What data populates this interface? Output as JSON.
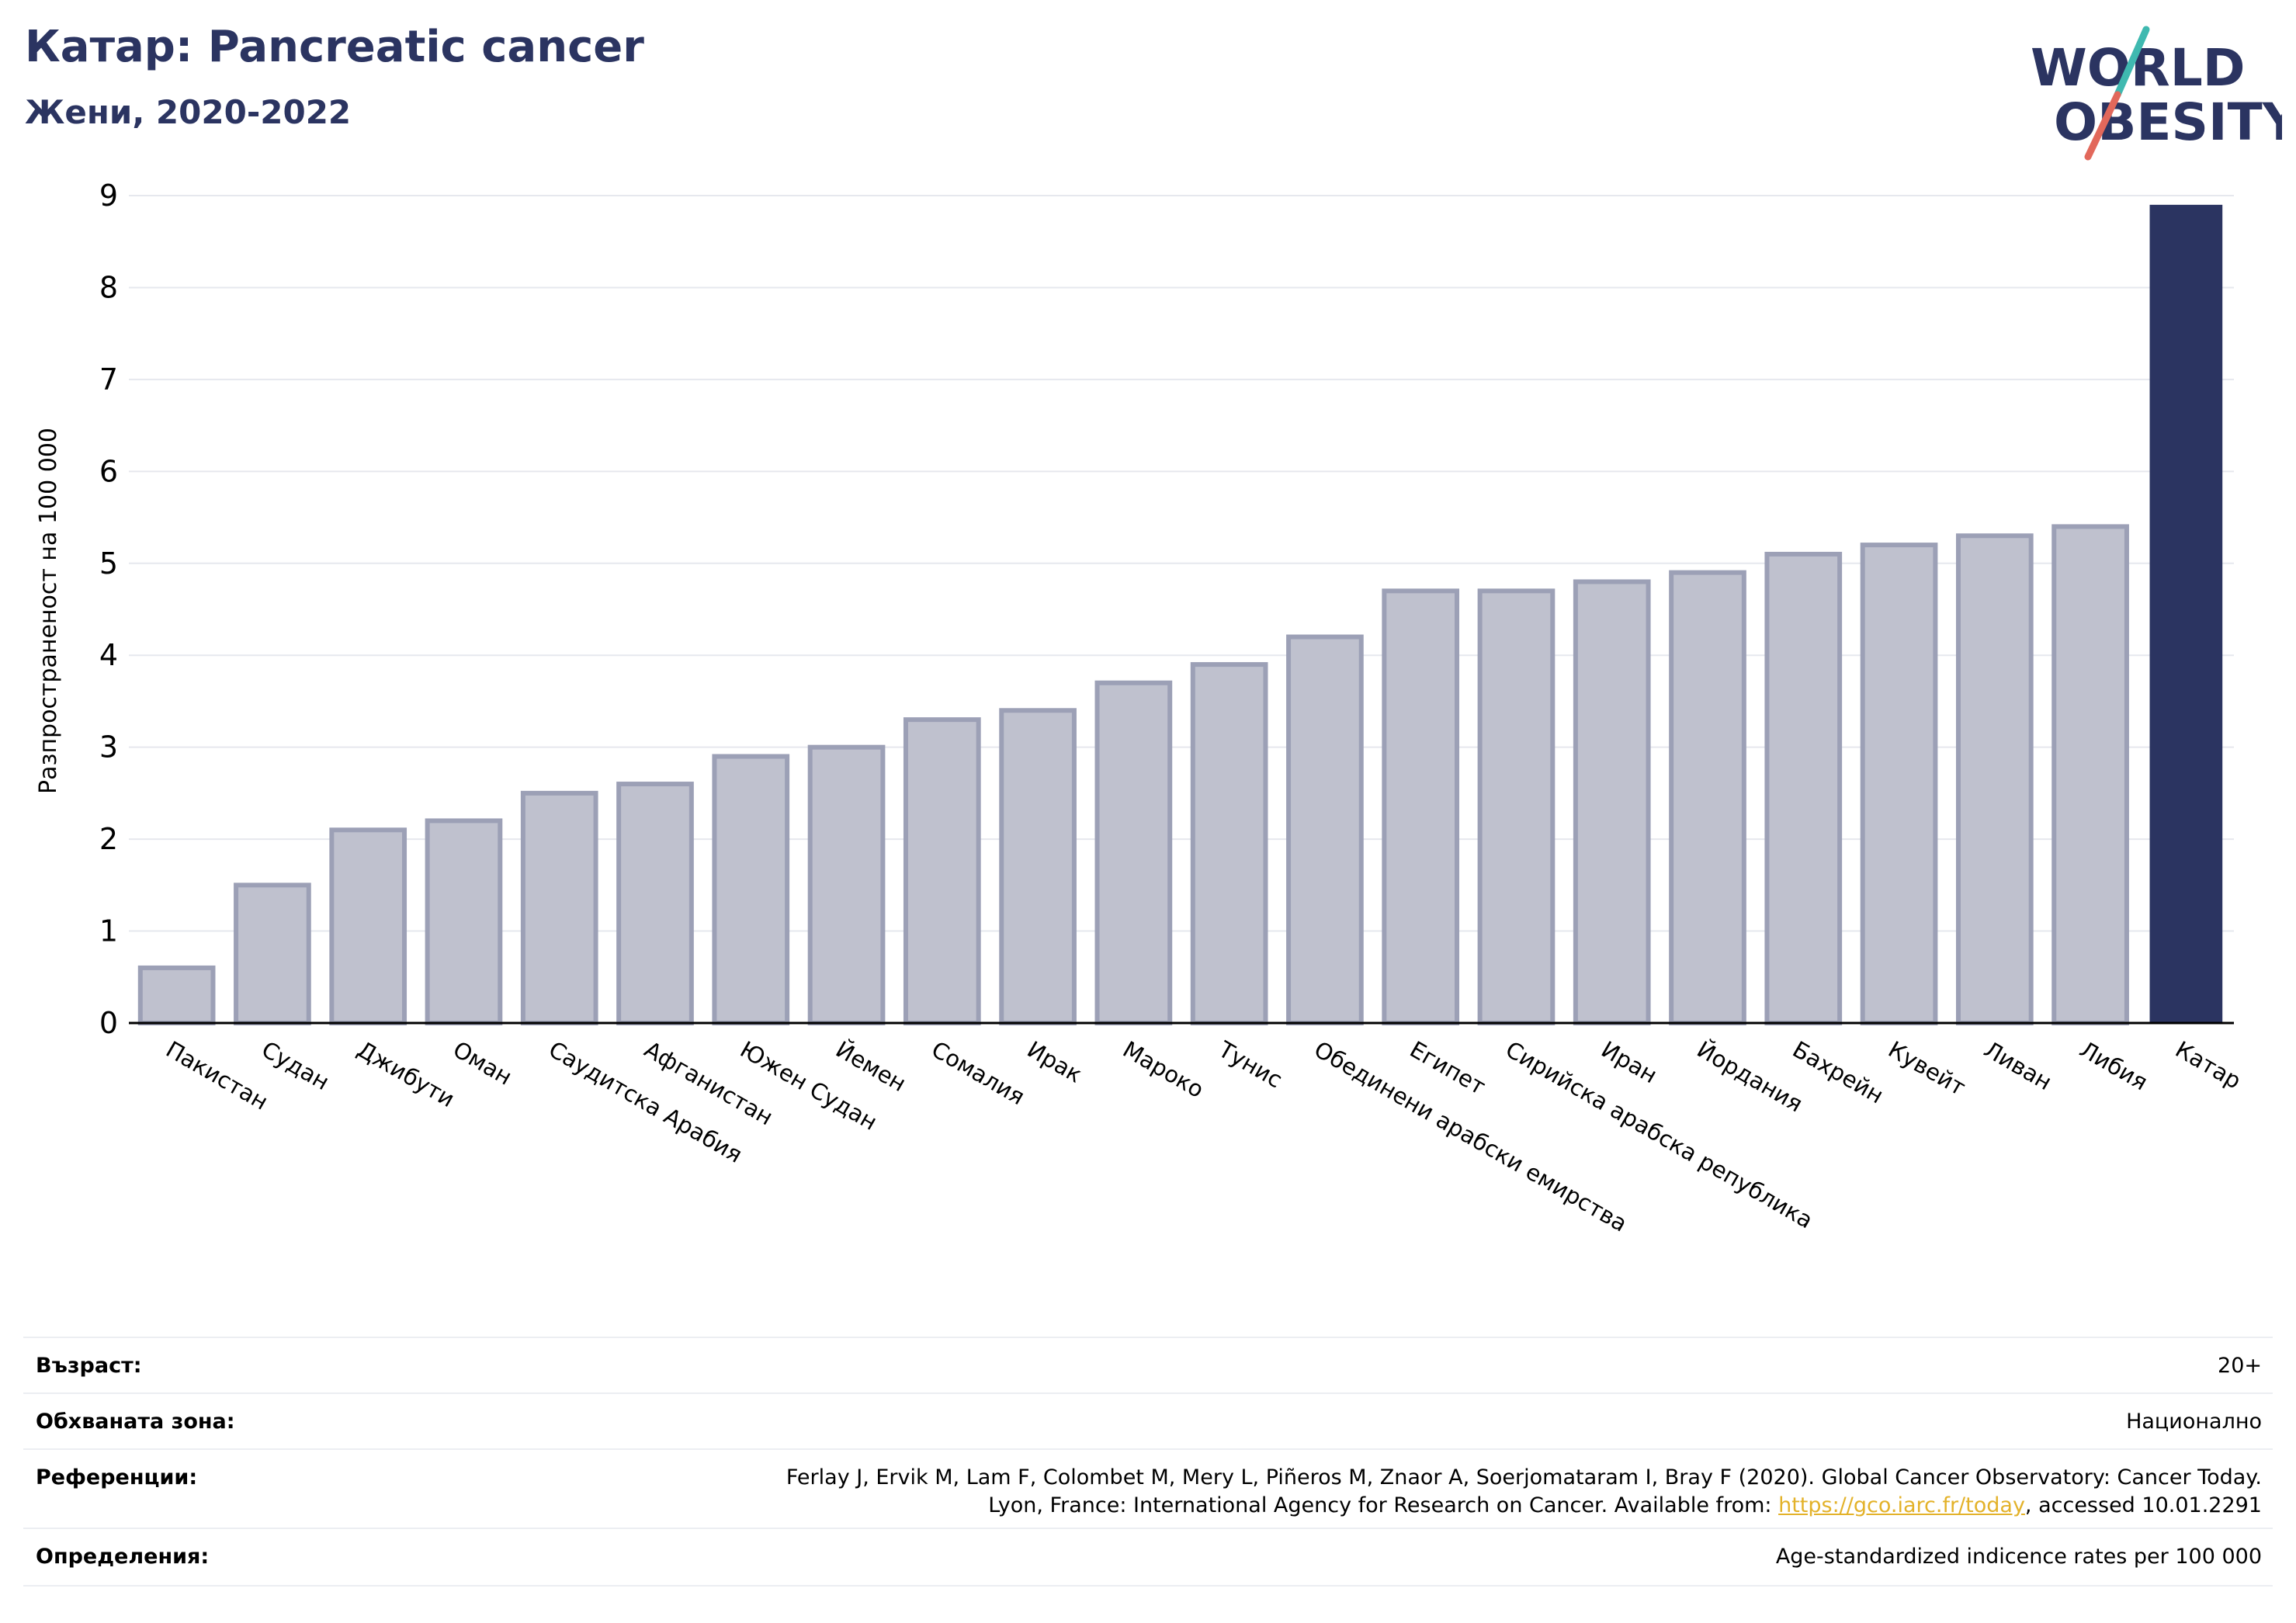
{
  "header": {
    "title": "Катар: Pancreatic cancer",
    "subtitle": "Жени, 2020-2022"
  },
  "logo": {
    "line1": "WORLD",
    "line2": "OBESITY",
    "colors": {
      "text": "#2b3461",
      "slash_top": "#3fb9b0",
      "slash_bottom": "#e2685b"
    }
  },
  "chart_data": {
    "type": "bar",
    "ylabel": "Разпространеност  на 100 000",
    "ylim": [
      0,
      9
    ],
    "yticks": [
      0,
      1,
      2,
      3,
      4,
      5,
      6,
      7,
      8,
      9
    ],
    "grid": true,
    "categories": [
      "Пакистан",
      "Судан",
      "Джибути",
      "Оман",
      "Саудитска Арабия",
      "Афганистан",
      "Южен Судан",
      "Йемен",
      "Сомалия",
      "Ирак",
      "Мароко",
      "Тунис",
      "Обединени арабски емирства",
      "Египет",
      "Сирийска арабска република",
      "Иран",
      "Йордания",
      "Бахрейн",
      "Кувейт",
      "Ливан",
      "Либия",
      "Катар"
    ],
    "values": [
      0.6,
      1.5,
      2.1,
      2.2,
      2.5,
      2.6,
      2.9,
      3.0,
      3.3,
      3.4,
      3.7,
      3.9,
      4.2,
      4.7,
      4.7,
      4.8,
      4.9,
      5.1,
      5.2,
      5.3,
      5.4,
      8.9
    ],
    "highlight": "Катар",
    "colors": {
      "bar": "#bfc1ce",
      "bar_edge": "#9ca0b6",
      "highlight": "#2b3461",
      "grid": "#e6e8ee",
      "axis": "#000000"
    }
  },
  "meta": {
    "age_label": "Възраст:",
    "age_value": "20+",
    "coverage_label": "Обхваната зона:",
    "coverage_value": "Национално",
    "references_label": "Референции:",
    "references_line1": "Ferlay J, Ervik M, Lam F, Colombet M, Mery L, Piñeros M, Znaor A, Soerjomataram I, Bray F (2020). Global Cancer Observatory: Cancer Today.",
    "references_line2_pre": "Lyon, France: International Agency for Research on Cancer. Available from: ",
    "references_link": "https://gco.iarc.fr/today",
    "references_line2_post": ", accessed 10.01.2291",
    "definitions_label": "Определения:",
    "definitions_value": "Age-standardized indicence rates per 100 000"
  }
}
